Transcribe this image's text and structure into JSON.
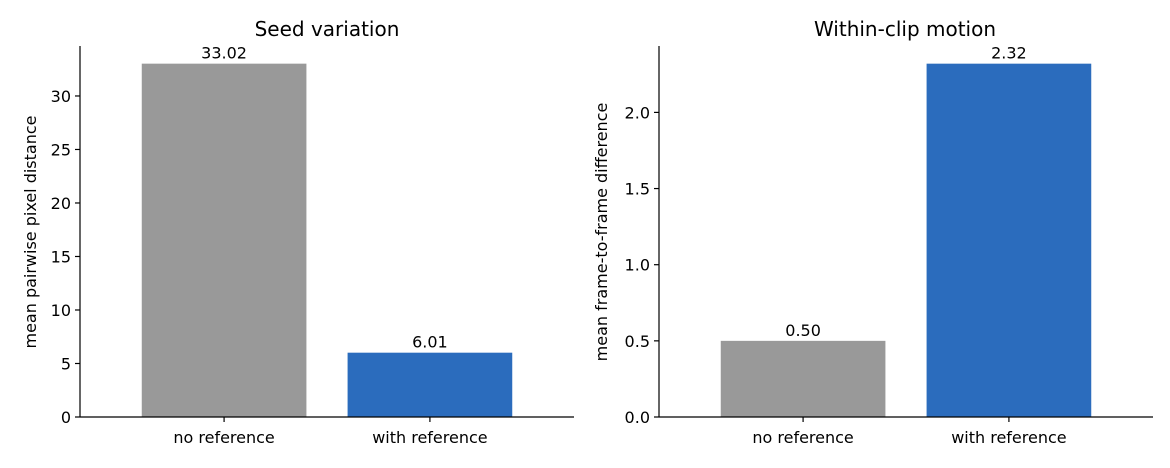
{
  "chart_data": [
    {
      "type": "bar",
      "title": "Seed variation",
      "xlabel": "",
      "ylabel": "mean pairwise pixel distance",
      "categories": [
        "no reference",
        "with reference"
      ],
      "values": [
        33.02,
        6.01
      ],
      "value_labels": [
        "33.02",
        "6.01"
      ],
      "colors": [
        "#999999",
        "#2b6cbd"
      ],
      "ylim": [
        0,
        34.67
      ],
      "yticks": [
        0,
        5,
        10,
        15,
        20,
        25,
        30
      ],
      "ytick_labels": [
        "0",
        "5",
        "10",
        "15",
        "20",
        "25",
        "30"
      ],
      "grid": false
    },
    {
      "type": "bar",
      "title": "Within-clip motion",
      "xlabel": "",
      "ylabel": "mean frame-to-frame difference",
      "categories": [
        "no reference",
        "with reference"
      ],
      "values": [
        0.5,
        2.32
      ],
      "value_labels": [
        "0.50",
        "2.32"
      ],
      "colors": [
        "#999999",
        "#2b6cbd"
      ],
      "ylim": [
        0,
        2.436
      ],
      "yticks": [
        0.0,
        0.5,
        1.0,
        1.5,
        2.0
      ],
      "ytick_labels": [
        "0.0",
        "0.5",
        "1.0",
        "1.5",
        "2.0"
      ],
      "grid": false
    }
  ]
}
